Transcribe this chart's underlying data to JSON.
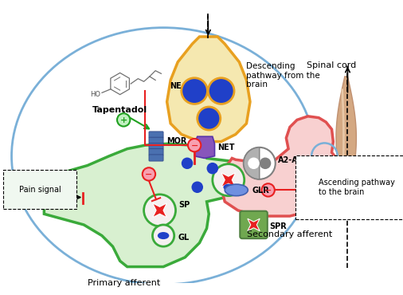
{
  "fig_width": 5.0,
  "fig_height": 3.81,
  "dpi": 100,
  "bg_color": "#ffffff",
  "green_neuron_color": "#3aaa3a",
  "green_neuron_fill": "#d8f0d0",
  "yellow_neuron_color": "#e8a020",
  "yellow_neuron_fill": "#f5e8b0",
  "red_neuron_color": "#e05050",
  "red_neuron_fill": "#f8d0d0",
  "blue_dot_color": "#2040c8",
  "red_star_color": "#e82020",
  "inhibit_color": "#e82020",
  "activate_color": "#20a020",
  "main_ellipse_color": "#7ab0d8",
  "spinal_color": "#d4a882",
  "title_descending": "Descending\npathway from the\nbrain",
  "title_ascending": "Ascending pathway\nto the brain",
  "title_pain": "Pain signal",
  "title_spinal": "Spinal cord",
  "title_tapentadol": "Tapentadol",
  "label_primary": "Primary afferent",
  "label_secondary": "Secondary afferent",
  "label_NE": "NE",
  "label_NET": "NET",
  "label_MOR": "MOR",
  "label_SP": "SP",
  "label_GL": "GL",
  "label_A2AR": "A2-AR",
  "label_GLR": "GLR",
  "label_SPR": "SPR"
}
